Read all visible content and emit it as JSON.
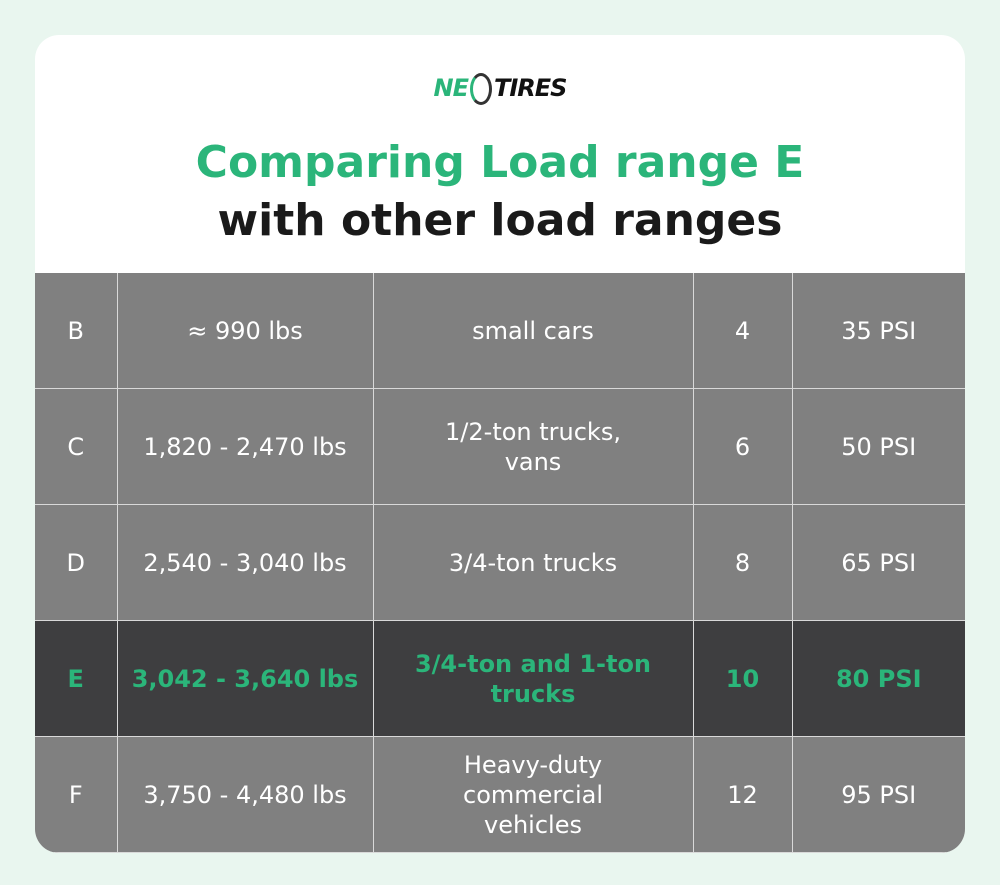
{
  "brand": {
    "part1": "NE",
    "part2": "TIRES",
    "color": "#2bb57a"
  },
  "title": {
    "line1": "Comparing Load range E",
    "line2": "with other load ranges"
  },
  "rows": [
    {
      "range": "B",
      "load": "≈ 990 lbs",
      "use": "small cars",
      "ply": "4",
      "psi": "35 PSI"
    },
    {
      "range": "C",
      "load": "1,820 - 2,470 lbs",
      "use": "1/2-ton trucks, vans",
      "ply": "6",
      "psi": "50 PSI"
    },
    {
      "range": "D",
      "load": "2,540 - 3,040 lbs",
      "use": "3/4-ton trucks",
      "ply": "8",
      "psi": "65 PSI"
    },
    {
      "range": "E",
      "load": "3,042 - 3,640 lbs",
      "use": "3/4-ton and 1-ton trucks",
      "ply": "10",
      "psi": "80 PSI",
      "highlight": true
    },
    {
      "range": "F",
      "load": "3,750 - 4,480 lbs",
      "use": "Heavy-duty commercial vehicles",
      "ply": "12",
      "psi": "95 PSI"
    }
  ]
}
